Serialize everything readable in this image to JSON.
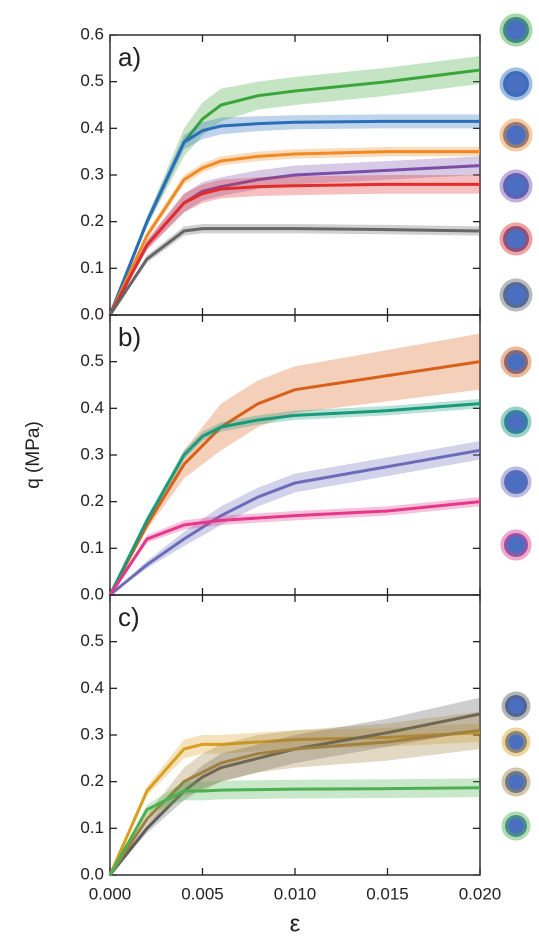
{
  "chart_data": [
    {
      "type": "line",
      "label": "a)",
      "x": [
        0,
        0.002,
        0.004,
        0.005,
        0.006,
        0.008,
        0.01,
        0.015,
        0.02
      ],
      "xlim": [
        0,
        0.02
      ],
      "xticks": [
        0,
        0.005,
        0.01,
        0.015,
        0.02
      ],
      "ylim": [
        0,
        0.6
      ],
      "yticks": [
        {
          "value": 0,
          "label": "0.0"
        },
        0.1,
        0.2,
        0.3,
        0.4,
        0.5,
        0.6
      ],
      "series": [
        {
          "color": "#3aa63a",
          "values": [
            0,
            0.2,
            0.37,
            0.42,
            0.45,
            0.47,
            0.48,
            0.5,
            0.525
          ],
          "errors": [
            0,
            0.01,
            0.03,
            0.035,
            0.035,
            0.03,
            0.03,
            0.03,
            0.03
          ]
        },
        {
          "color": "#2a6ebb",
          "values": [
            0,
            0.2,
            0.37,
            0.395,
            0.405,
            0.41,
            0.413,
            0.415,
            0.415
          ],
          "errors": [
            0,
            0.01,
            0.015,
            0.018,
            0.018,
            0.016,
            0.015,
            0.015,
            0.015
          ]
        },
        {
          "color": "#f08a24",
          "values": [
            0,
            0.17,
            0.29,
            0.315,
            0.33,
            0.34,
            0.345,
            0.35,
            0.35
          ],
          "errors": [
            0,
            0.008,
            0.01,
            0.01,
            0.01,
            0.01,
            0.01,
            0.01,
            0.01
          ]
        },
        {
          "color": "#7a4fa8",
          "values": [
            0,
            0.15,
            0.24,
            0.265,
            0.275,
            0.29,
            0.3,
            0.31,
            0.32
          ],
          "errors": [
            0,
            0.01,
            0.02,
            0.02,
            0.02,
            0.02,
            0.02,
            0.02,
            0.02
          ]
        },
        {
          "color": "#e32d2d",
          "values": [
            0,
            0.15,
            0.24,
            0.26,
            0.27,
            0.275,
            0.277,
            0.28,
            0.28
          ],
          "errors": [
            0,
            0.01,
            0.02,
            0.02,
            0.02,
            0.02,
            0.02,
            0.02,
            0.02
          ]
        },
        {
          "color": "#666666",
          "values": [
            0,
            0.12,
            0.18,
            0.185,
            0.185,
            0.185,
            0.185,
            0.183,
            0.18
          ],
          "errors": [
            0,
            0.008,
            0.01,
            0.01,
            0.01,
            0.01,
            0.01,
            0.01,
            0.01
          ]
        }
      ]
    },
    {
      "type": "line",
      "label": "b)",
      "ylabel": "q (MPa)",
      "x": [
        0,
        0.002,
        0.004,
        0.005,
        0.006,
        0.008,
        0.01,
        0.015,
        0.02
      ],
      "xlim": [
        0,
        0.02
      ],
      "xticks": [
        0,
        0.005,
        0.01,
        0.015,
        0.02
      ],
      "ylim": [
        0,
        0.6
      ],
      "yticks": [
        {
          "value": 0,
          "label": "0.0"
        },
        0.1,
        0.2,
        0.3,
        0.4,
        0.5
      ],
      "series": [
        {
          "color": "#d9601a",
          "values": [
            0,
            0.15,
            0.28,
            0.32,
            0.36,
            0.41,
            0.44,
            0.47,
            0.5
          ],
          "errors": [
            0,
            0.01,
            0.03,
            0.04,
            0.05,
            0.05,
            0.05,
            0.055,
            0.06
          ]
        },
        {
          "color": "#1a9a7a",
          "values": [
            0,
            0.16,
            0.3,
            0.34,
            0.36,
            0.375,
            0.385,
            0.395,
            0.41
          ],
          "errors": [
            0,
            0.008,
            0.01,
            0.01,
            0.01,
            0.01,
            0.01,
            0.01,
            0.01
          ]
        },
        {
          "color": "#6b6bb8",
          "values": [
            0,
            0.065,
            0.12,
            0.145,
            0.17,
            0.21,
            0.24,
            0.275,
            0.31
          ],
          "errors": [
            0,
            0.008,
            0.015,
            0.018,
            0.02,
            0.02,
            0.02,
            0.02,
            0.02
          ]
        },
        {
          "color": "#e6388a",
          "values": [
            0,
            0.12,
            0.15,
            0.155,
            0.16,
            0.165,
            0.17,
            0.18,
            0.2
          ],
          "errors": [
            0,
            0.008,
            0.01,
            0.01,
            0.01,
            0.01,
            0.01,
            0.01,
            0.01
          ]
        }
      ]
    },
    {
      "type": "line",
      "label": "c)",
      "xlabel": "ε",
      "x": [
        0,
        0.002,
        0.004,
        0.005,
        0.006,
        0.008,
        0.01,
        0.015,
        0.02
      ],
      "xlim": [
        0,
        0.02
      ],
      "xticks": [
        {
          "value": 0,
          "label": "0.000"
        },
        0.005,
        {
          "value": 0.01,
          "label": "0.010"
        },
        0.015,
        {
          "value": 0.02,
          "label": "0.020"
        }
      ],
      "ylim": [
        0,
        0.6
      ],
      "yticks": [
        {
          "value": 0,
          "label": "0.0"
        },
        0.1,
        0.2,
        0.3,
        0.4,
        0.5
      ],
      "series": [
        {
          "color": "#d9a020",
          "values": [
            0,
            0.18,
            0.27,
            0.28,
            0.28,
            0.285,
            0.29,
            0.295,
            0.305
          ],
          "errors": [
            0,
            0.01,
            0.02,
            0.02,
            0.02,
            0.02,
            0.02,
            0.02,
            0.02
          ]
        },
        {
          "color": "#5c5c5c",
          "values": [
            0,
            0.1,
            0.18,
            0.21,
            0.23,
            0.25,
            0.27,
            0.305,
            0.345
          ],
          "errors": [
            0,
            0.01,
            0.02,
            0.025,
            0.03,
            0.03,
            0.03,
            0.03,
            0.035
          ]
        },
        {
          "color": "#a08040",
          "values": [
            0,
            0.12,
            0.2,
            0.22,
            0.24,
            0.26,
            0.27,
            0.285,
            0.31
          ],
          "errors": [
            0,
            0.01,
            0.03,
            0.04,
            0.04,
            0.04,
            0.04,
            0.04,
            0.04
          ]
        },
        {
          "color": "#4caf50",
          "values": [
            0,
            0.14,
            0.18,
            0.18,
            0.182,
            0.183,
            0.184,
            0.185,
            0.187
          ],
          "errors": [
            0,
            0.01,
            0.02,
            0.02,
            0.02,
            0.02,
            0.02,
            0.02,
            0.02
          ]
        }
      ]
    }
  ]
}
